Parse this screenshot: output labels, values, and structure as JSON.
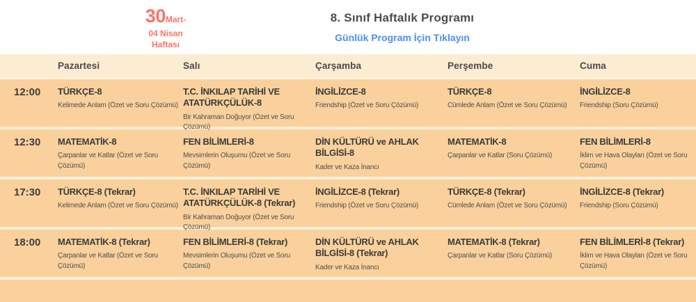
{
  "header": {
    "week_badge": {
      "big": "30",
      "small": "Mart-",
      "line2": "04 Nisan",
      "line3": "Haftası"
    },
    "title": "8. Sınıf Haftalık Programı",
    "link": "Günlük Program İçin Tıklayın"
  },
  "table": {
    "days": [
      "Pazartesi",
      "Salı",
      "Çarşamba",
      "Perşembe",
      "Cuma"
    ],
    "rows": [
      {
        "time": "12:00",
        "cells": [
          {
            "subject": "TÜRKÇE-8",
            "topic": "Kelimede Anlam (Özet ve Soru Çözümü)"
          },
          {
            "subject": "T.C. İNKILAP TARİHİ VE ATATÜRKÇÜLÜK-8",
            "topic": "Bir Kahraman Doğuyor (Özet ve Soru Çözümü)"
          },
          {
            "subject": "İNGİLİZCE-8",
            "topic": "Friendship (Özet ve Soru Çözümü)"
          },
          {
            "subject": "TÜRKÇE-8",
            "topic": "Cümlede Anlam (Özet ve Soru Çözümü)"
          },
          {
            "subject": "İNGİLİZCE-8",
            "topic": "Friendship (Soru Çözümü)"
          }
        ]
      },
      {
        "time": "12:30",
        "cells": [
          {
            "subject": "MATEMATİK-8",
            "topic": "Çarpanlar ve Katlar (Özet ve Soru Çözümü)"
          },
          {
            "subject": "FEN BİLİMLERİ-8",
            "topic": "Mevsimlerin Oluşumu (Özet ve Soru Çözümü)"
          },
          {
            "subject": "DİN KÜLTÜRÜ ve AHLAK BİLGİSİ-8",
            "topic": "Kader ve Kaza İnancı"
          },
          {
            "subject": "MATEMATİK-8",
            "topic": "Çarpanlar ve Katlar (Soru Çözümü)"
          },
          {
            "subject": "FEN BİLİMLERİ-8",
            "topic": "İklim ve Hava Olayları (Özet ve Soru Çözümü)"
          }
        ]
      },
      {
        "time": "17:30",
        "cells": [
          {
            "subject": "TÜRKÇE-8 (Tekrar)",
            "topic": "Kelimede Anlam (Özet ve Soru Çözümü)"
          },
          {
            "subject": "T.C. İNKILAP TARİHİ VE ATATÜRKÇÜLÜK-8 (Tekrar)",
            "topic": "Bir Kahraman Doğuyor (Özet ve Soru Çözümü)"
          },
          {
            "subject": "İNGİLİZCE-8 (Tekrar)",
            "topic": "Friendship (Özet ve Soru Çözümü)"
          },
          {
            "subject": "TÜRKÇE-8 (Tekrar)",
            "topic": "Cümlede Anlam (Özet ve Soru Çözümü)"
          },
          {
            "subject": "İNGİLİZCE-8 (Tekrar)",
            "topic": "Friendship (Soru Çözümü)"
          }
        ]
      },
      {
        "time": "18:00",
        "cells": [
          {
            "subject": "MATEMATİK-8 (Tekrar)",
            "topic": "Çarpanlar ve Katlar (Özet ve Soru Çözümü)"
          },
          {
            "subject": "FEN BİLİMLERİ-8 (Tekrar)",
            "topic": "Mevsimlerin Oluşumu (Özet ve Soru Çözümü)"
          },
          {
            "subject": "DİN KÜLTÜRÜ ve AHLAK BİLGİSİ-8 (Tekrar)",
            "topic": "Kader ve Kaza İnancı"
          },
          {
            "subject": "MATEMATİK-8 (Tekrar)",
            "topic": "Çarpanlar ve Katlar (Soru Çözümü)"
          },
          {
            "subject": "FEN BİLİMLERİ-8 (Tekrar)",
            "topic": "İklim ve Hava Olayları (Özet ve Soru Çözümü)"
          }
        ]
      }
    ]
  },
  "colors": {
    "accent_red": "#fa7268",
    "link_blue": "#4a8ff2",
    "row_orange": "#fad19c",
    "band_cream": "#fcecd2",
    "gap_cream": "#fdf0db",
    "text_dark": "#3b3b3b"
  }
}
